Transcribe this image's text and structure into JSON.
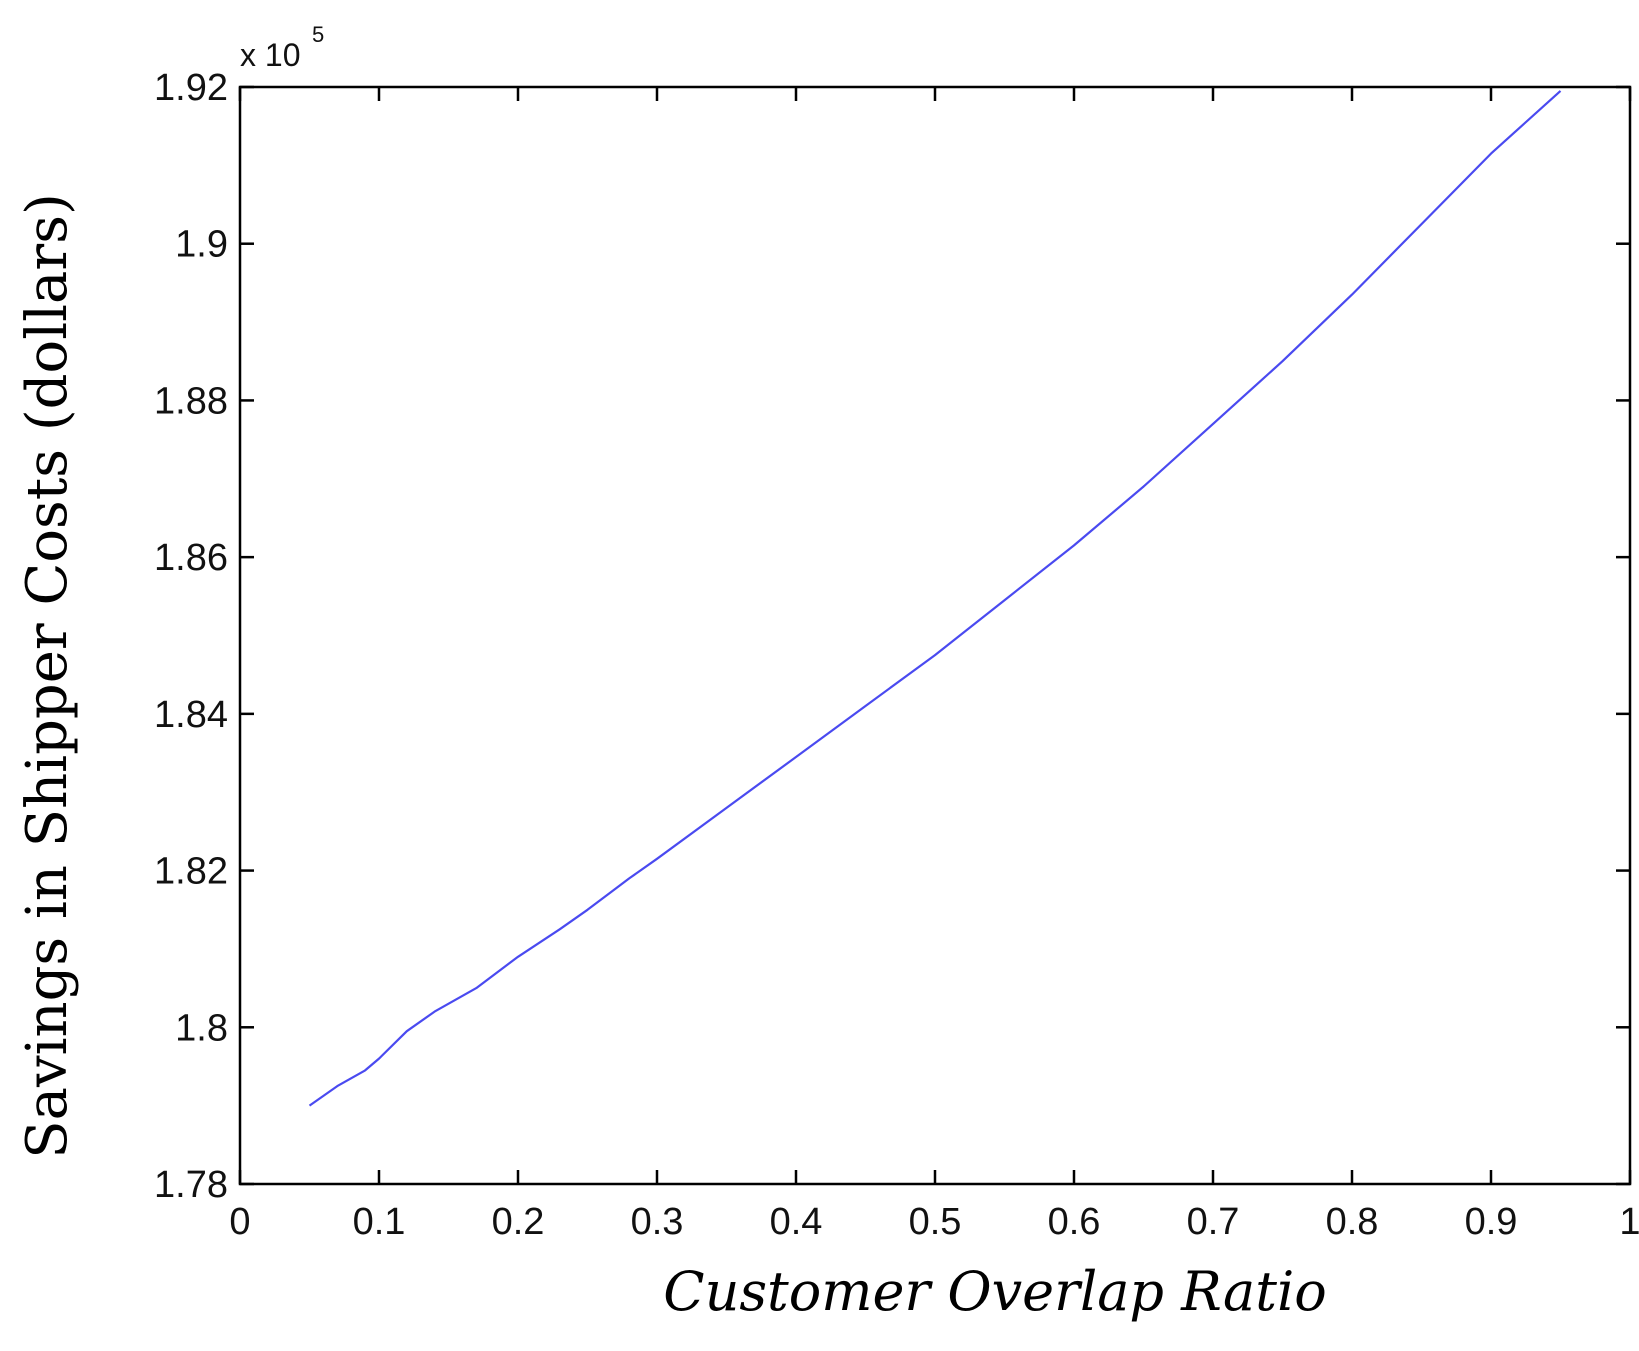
{
  "chart_data": {
    "type": "line",
    "title": "",
    "xlabel": "Customer Overlap Ratio",
    "ylabel": "Savings in Shipper Costs (dollars)",
    "y_multiplier": {
      "base": "x 10",
      "exponent": "5"
    },
    "xlim": [
      0,
      1
    ],
    "ylim": [
      1.78,
      1.92
    ],
    "x_ticks": [
      0,
      0.1,
      0.2,
      0.3,
      0.4,
      0.5,
      0.6,
      0.7,
      0.8,
      0.9,
      1
    ],
    "x_tick_labels": [
      "0",
      "0.1",
      "0.2",
      "0.3",
      "0.4",
      "0.5",
      "0.6",
      "0.7",
      "0.8",
      "0.9",
      "1"
    ],
    "y_ticks": [
      1.78,
      1.8,
      1.82,
      1.84,
      1.86,
      1.88,
      1.9,
      1.92
    ],
    "y_tick_labels": [
      "1.78",
      "1.8",
      "1.82",
      "1.84",
      "1.86",
      "1.88",
      "1.9",
      "1.92"
    ],
    "grid": false,
    "series": [
      {
        "color": "#4a4af0",
        "x": [
          0.05,
          0.07,
          0.09,
          0.1,
          0.12,
          0.14,
          0.17,
          0.2,
          0.23,
          0.25,
          0.28,
          0.3,
          0.35,
          0.4,
          0.45,
          0.5,
          0.55,
          0.6,
          0.65,
          0.7,
          0.75,
          0.8,
          0.85,
          0.9,
          0.95
        ],
        "values": [
          1.79,
          1.7925,
          1.7945,
          1.796,
          1.7995,
          1.802,
          1.805,
          1.809,
          1.8125,
          1.815,
          1.819,
          1.8215,
          1.828,
          1.8345,
          1.841,
          1.8475,
          1.8545,
          1.8615,
          1.869,
          1.877,
          1.885,
          1.8935,
          1.9025,
          1.9115,
          1.9195
        ]
      }
    ]
  }
}
